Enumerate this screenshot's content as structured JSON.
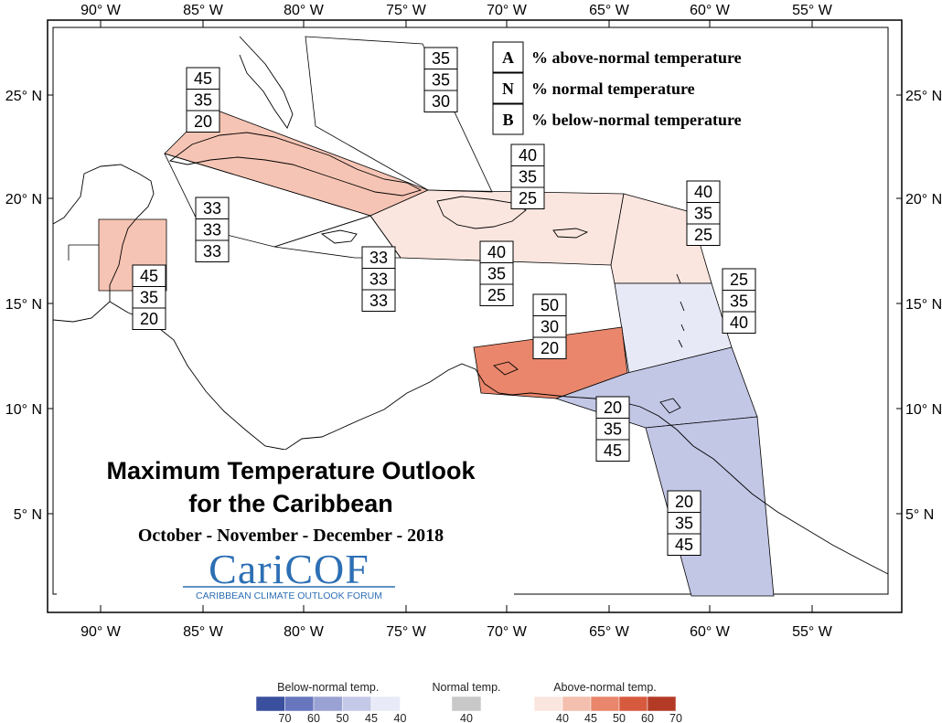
{
  "axes": {
    "x_ticks": [
      "90° W",
      "85° W",
      "80° W",
      "75° W",
      "70° W",
      "65° W",
      "60° W",
      "55° W"
    ],
    "y_ticks_left": [
      "25° N",
      "20° N",
      "15° N",
      "10° N",
      "5° N"
    ],
    "y_ticks_right": [
      "25° N",
      "20° N",
      "15° N",
      "10° N",
      "5° N"
    ]
  },
  "legend_key": [
    {
      "letter": "A",
      "text": "% above-normal temperature"
    },
    {
      "letter": "N",
      "text": "% normal temperature"
    },
    {
      "letter": "B",
      "text": "% below-normal temperature"
    }
  ],
  "regions": [
    {
      "id": "bahamas",
      "values": [
        "35",
        "35",
        "30"
      ],
      "fill": "none"
    },
    {
      "id": "cuba",
      "values": [
        "45",
        "35",
        "20"
      ],
      "fill": "#f6c4b4"
    },
    {
      "id": "hispaniola",
      "values": [
        "40",
        "35",
        "25"
      ],
      "fill": "#fbe6df"
    },
    {
      "id": "leewards",
      "values": [
        "40",
        "35",
        "25"
      ],
      "fill": "#fbe6df"
    },
    {
      "id": "cayman",
      "values": [
        "33",
        "33",
        "33"
      ],
      "fill": "none"
    },
    {
      "id": "jamaica",
      "values": [
        "33",
        "33",
        "33"
      ],
      "fill": "none"
    },
    {
      "id": "puerto-rico",
      "values": [
        "40",
        "35",
        "25"
      ],
      "fill": "#fbe6df"
    },
    {
      "id": "belize",
      "values": [
        "45",
        "35",
        "20"
      ],
      "fill": "#f6c4b4"
    },
    {
      "id": "windwards",
      "values": [
        "25",
        "35",
        "40"
      ],
      "fill": "#e7e9f6"
    },
    {
      "id": "abc-islands",
      "values": [
        "50",
        "30",
        "20"
      ],
      "fill": "#e9866b"
    },
    {
      "id": "trinidad",
      "values": [
        "20",
        "35",
        "45"
      ],
      "fill": "#c3c7e6"
    },
    {
      "id": "guianas",
      "values": [
        "20",
        "35",
        "45"
      ],
      "fill": "#c3c7e6"
    }
  ],
  "title": {
    "line1": "Maximum Temperature Outlook",
    "line2": "for the Caribbean",
    "period": "October - November - December - 2018"
  },
  "logo": {
    "main": "CariCOF",
    "sub": "CARIBBEAN CLIMATE OUTLOOK FORUM"
  },
  "colorbar": {
    "below": {
      "title": "Below-normal temp.",
      "colors": [
        "#3a4f9d",
        "#6776bd",
        "#9aa2d3",
        "#c5c9e8",
        "#e8eaf7"
      ],
      "ticks": [
        "70",
        "60",
        "50",
        "45",
        "40"
      ]
    },
    "normal": {
      "title": "Normal temp.",
      "colors": [
        "#c8c8c8"
      ],
      "ticks": [
        "40"
      ]
    },
    "above": {
      "title": "Above-normal temp.",
      "colors": [
        "#fbe6df",
        "#f4bfae",
        "#e9866b",
        "#d85a3e",
        "#b33b26"
      ],
      "ticks": [
        "40",
        "45",
        "50",
        "60",
        "70"
      ]
    }
  }
}
